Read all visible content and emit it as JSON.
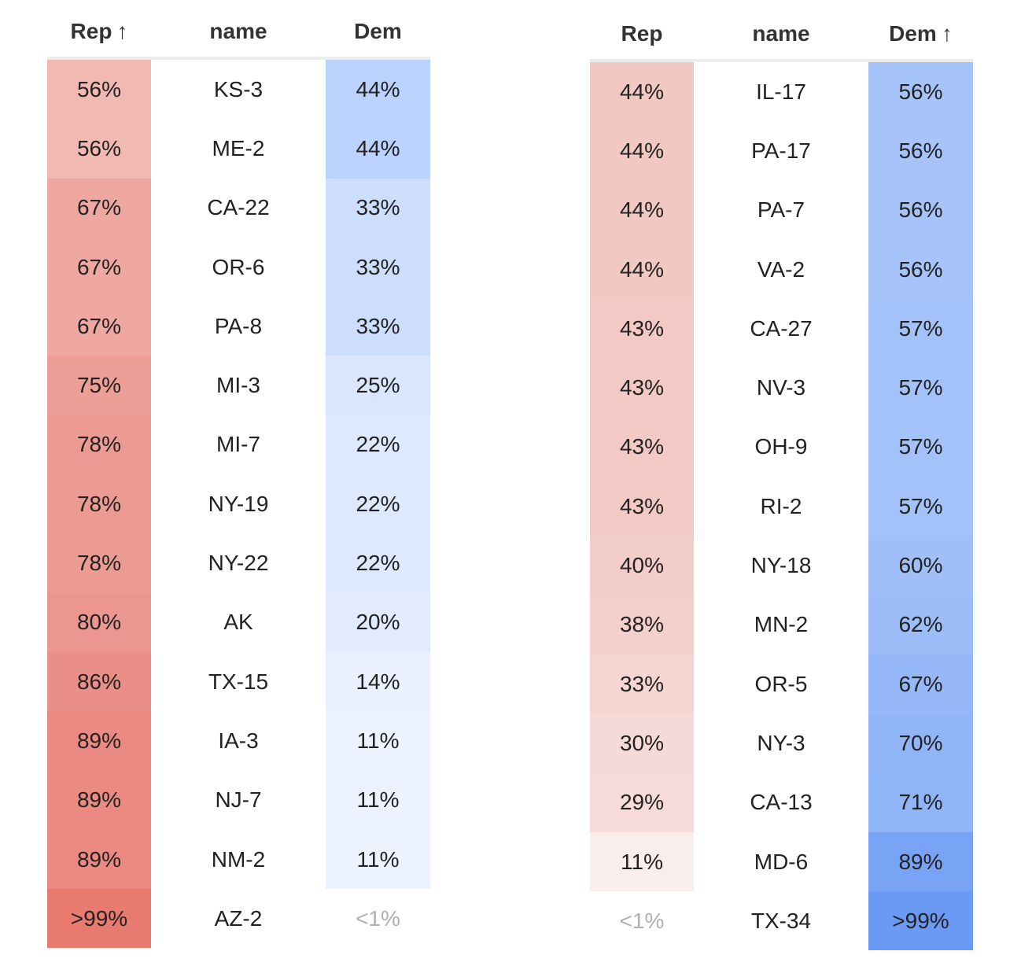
{
  "tables": [
    {
      "headers": {
        "rep": "Rep",
        "name": "name",
        "dem": "Dem"
      },
      "sort_arrow": "↑",
      "sorted_column": "rep",
      "rows": [
        {
          "rep": "56%",
          "name": "KS-3",
          "dem": "44%",
          "rep_color": "#f2b9b3",
          "dem_color": "#bad2fc"
        },
        {
          "rep": "56%",
          "name": "ME-2",
          "dem": "44%",
          "rep_color": "#f2b9b3",
          "dem_color": "#bad2fc"
        },
        {
          "rep": "67%",
          "name": "CA-22",
          "dem": "33%",
          "rep_color": "#efa8a1",
          "dem_color": "#cdddfc"
        },
        {
          "rep": "67%",
          "name": "OR-6",
          "dem": "33%",
          "rep_color": "#efa8a1",
          "dem_color": "#cdddfc"
        },
        {
          "rep": "67%",
          "name": "PA-8",
          "dem": "33%",
          "rep_color": "#efa8a1",
          "dem_color": "#cdddfc"
        },
        {
          "rep": "75%",
          "name": "MI-3",
          "dem": "25%",
          "rep_color": "#ed9f97",
          "dem_color": "#dae6fd"
        },
        {
          "rep": "78%",
          "name": "MI-7",
          "dem": "22%",
          "rep_color": "#ec9b93",
          "dem_color": "#dfe9fd"
        },
        {
          "rep": "78%",
          "name": "NY-19",
          "dem": "22%",
          "rep_color": "#ec9b93",
          "dem_color": "#dfe9fd"
        },
        {
          "rep": "78%",
          "name": "NY-22",
          "dem": "22%",
          "rep_color": "#ec9b93",
          "dem_color": "#dfe9fd"
        },
        {
          "rep": "80%",
          "name": "AK",
          "dem": "20%",
          "rep_color": "#eb9790",
          "dem_color": "#e2ebfd"
        },
        {
          "rep": "86%",
          "name": "TX-15",
          "dem": "14%",
          "rep_color": "#ea8f87",
          "dem_color": "#eaf0fe"
        },
        {
          "rep": "89%",
          "name": "IA-3",
          "dem": "11%",
          "rep_color": "#ea8a82",
          "dem_color": "#edf3fe"
        },
        {
          "rep": "89%",
          "name": "NJ-7",
          "dem": "11%",
          "rep_color": "#ea8a82",
          "dem_color": "#edf3fe"
        },
        {
          "rep": "89%",
          "name": "NM-2",
          "dem": "11%",
          "rep_color": "#ea8a82",
          "dem_color": "#edf3fe"
        },
        {
          "rep": ">99%",
          "name": "AZ-2",
          "dem": "<1%",
          "rep_color": "#e87a70",
          "dem_color": "#ffffff",
          "faint": "dem"
        }
      ]
    },
    {
      "headers": {
        "rep": "Rep",
        "name": "name",
        "dem": "Dem"
      },
      "sort_arrow": "↑",
      "sorted_column": "dem",
      "rows": [
        {
          "rep": "44%",
          "name": "IL-17",
          "dem": "56%",
          "rep_color": "#f2c8c3",
          "dem_color": "#a6c4fa"
        },
        {
          "rep": "44%",
          "name": "PA-17",
          "dem": "56%",
          "rep_color": "#f2c8c3",
          "dem_color": "#a6c4fa"
        },
        {
          "rep": "44%",
          "name": "PA-7",
          "dem": "56%",
          "rep_color": "#f2c8c3",
          "dem_color": "#a6c4fa"
        },
        {
          "rep": "44%",
          "name": "VA-2",
          "dem": "56%",
          "rep_color": "#f2c8c3",
          "dem_color": "#a6c4fa"
        },
        {
          "rep": "43%",
          "name": "CA-27",
          "dem": "57%",
          "rep_color": "#f2c9c5",
          "dem_color": "#a4c2fa"
        },
        {
          "rep": "43%",
          "name": "NV-3",
          "dem": "57%",
          "rep_color": "#f2c9c5",
          "dem_color": "#a4c2fa"
        },
        {
          "rep": "43%",
          "name": "OH-9",
          "dem": "57%",
          "rep_color": "#f2c9c5",
          "dem_color": "#a4c2fa"
        },
        {
          "rep": "43%",
          "name": "RI-2",
          "dem": "57%",
          "rep_color": "#f2c9c5",
          "dem_color": "#a4c2fa"
        },
        {
          "rep": "40%",
          "name": "NY-18",
          "dem": "60%",
          "rep_color": "#f3cdc9",
          "dem_color": "#a0bff9"
        },
        {
          "rep": "38%",
          "name": "MN-2",
          "dem": "62%",
          "rep_color": "#f4d0cc",
          "dem_color": "#9dbdf9"
        },
        {
          "rep": "33%",
          "name": "OR-5",
          "dem": "67%",
          "rep_color": "#f5d6d3",
          "dem_color": "#96b8f9"
        },
        {
          "rep": "30%",
          "name": "NY-3",
          "dem": "70%",
          "rep_color": "#f6dad7",
          "dem_color": "#92b5f8"
        },
        {
          "rep": "29%",
          "name": "CA-13",
          "dem": "71%",
          "rep_color": "#f6dbd8",
          "dem_color": "#90b4f8"
        },
        {
          "rep": "11%",
          "name": "MD-6",
          "dem": "89%",
          "rep_color": "#faeeec",
          "dem_color": "#79a4f6"
        },
        {
          "rep": "<1%",
          "name": "TX-34",
          "dem": ">99%",
          "rep_color": "#ffffff",
          "dem_color": "#6b9af5",
          "faint": "rep"
        }
      ]
    }
  ]
}
